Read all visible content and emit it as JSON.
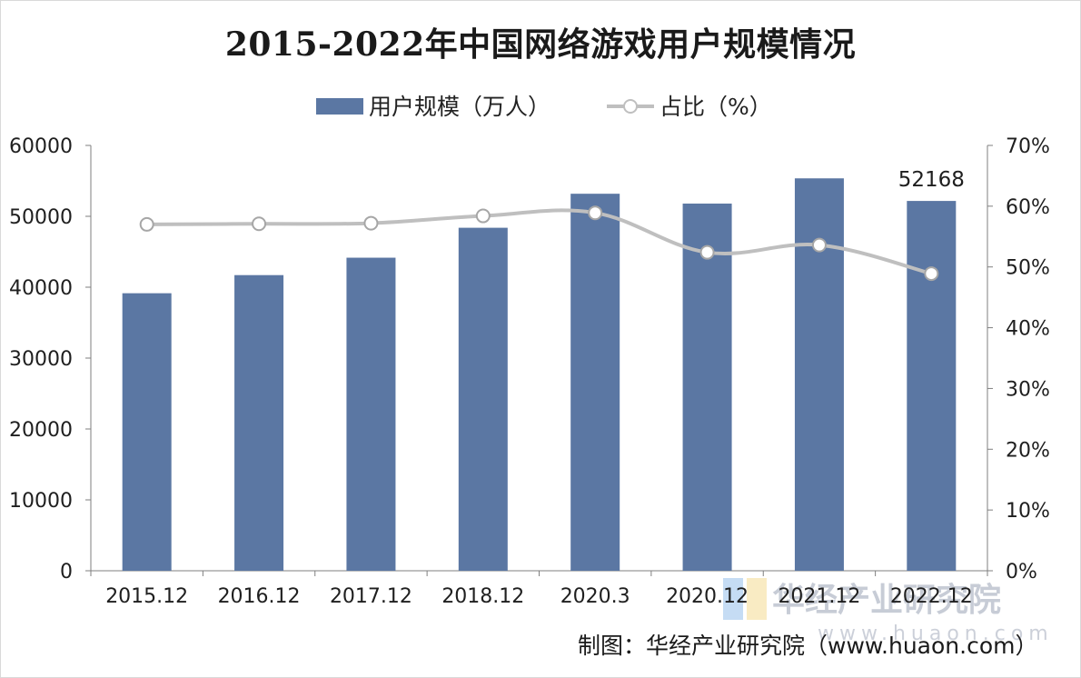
{
  "chart_data": {
    "type": "bar",
    "title": "2015-2022年中国网络游戏用户规模情况",
    "categories": [
      "2015.12",
      "2016.12",
      "2017.12",
      "2018.12",
      "2020.3",
      "2020.12",
      "2021.12",
      "2022.12"
    ],
    "series": [
      {
        "name": "用户规模（万人）",
        "type": "bar",
        "axis": "left",
        "color": "#5b77a3",
        "values": [
          39148,
          41704,
          44161,
          48384,
          53182,
          51793,
          55354,
          52168
        ]
      },
      {
        "name": "占比（%）",
        "type": "line",
        "axis": "right",
        "color": "#bfbfbf",
        "values": [
          57.0,
          57.1,
          57.2,
          58.4,
          58.9,
          52.4,
          53.6,
          48.9
        ]
      }
    ],
    "y_left": {
      "ylim": [
        0,
        60000
      ],
      "ticks": [
        "0",
        "10000",
        "20000",
        "30000",
        "40000",
        "50000",
        "60000"
      ]
    },
    "y_right": {
      "ylim": [
        0,
        70
      ],
      "ticks": [
        "0%",
        "10%",
        "20%",
        "30%",
        "40%",
        "50%",
        "60%",
        "70%"
      ]
    },
    "annotations": [
      {
        "category": "2022.12",
        "text": "52168"
      }
    ],
    "legend_placement": "top-center",
    "grid": false
  },
  "source": "制图：华经产业研究院（www.huaon.com）",
  "watermark": {
    "text": "华经产业研究院",
    "url": "www.huaon.com"
  }
}
